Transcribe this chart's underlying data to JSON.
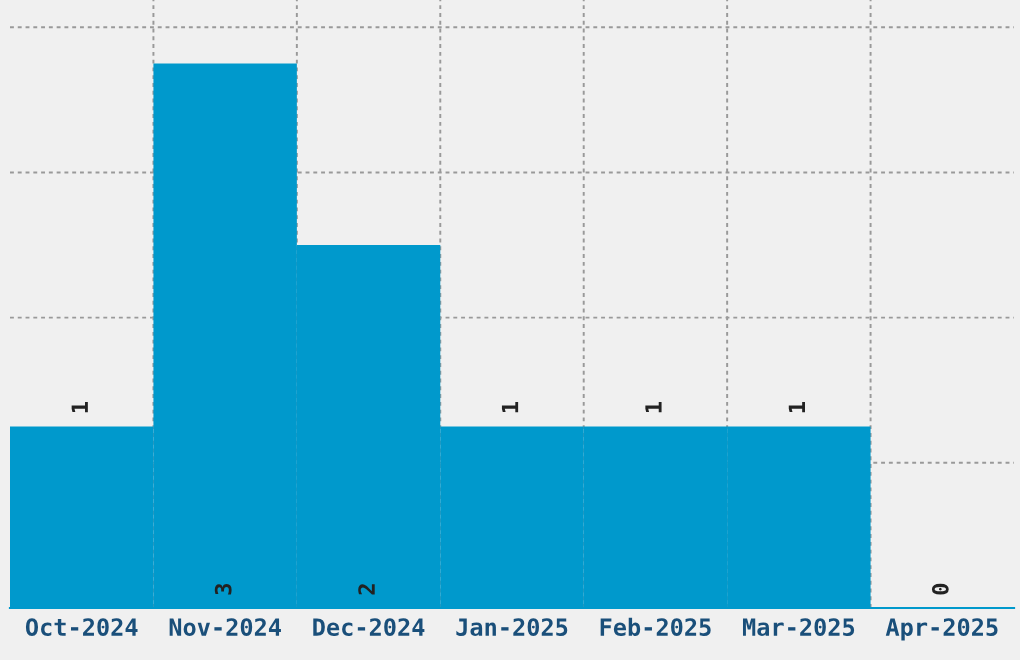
{
  "chart_data": {
    "type": "bar",
    "categories": [
      "Oct-2024",
      "Nov-2024",
      "Dec-2024",
      "Jan-2025",
      "Feb-2025",
      "Mar-2025",
      "Apr-2025"
    ],
    "values": [
      1,
      3,
      2,
      1,
      1,
      1,
      0
    ],
    "color": "#0099cc",
    "data_labels": true,
    "grid": true,
    "ylim": [
      0,
      3.35
    ],
    "yticks": [
      {
        "value": 0,
        "label": null
      },
      {
        "value": 0.8,
        "label": null
      },
      {
        "value": 1.6,
        "label": null
      },
      {
        "value": 2.4,
        "label": null
      },
      {
        "value": 3.2,
        "label": null
      }
    ],
    "tick_labels": "x"
  }
}
